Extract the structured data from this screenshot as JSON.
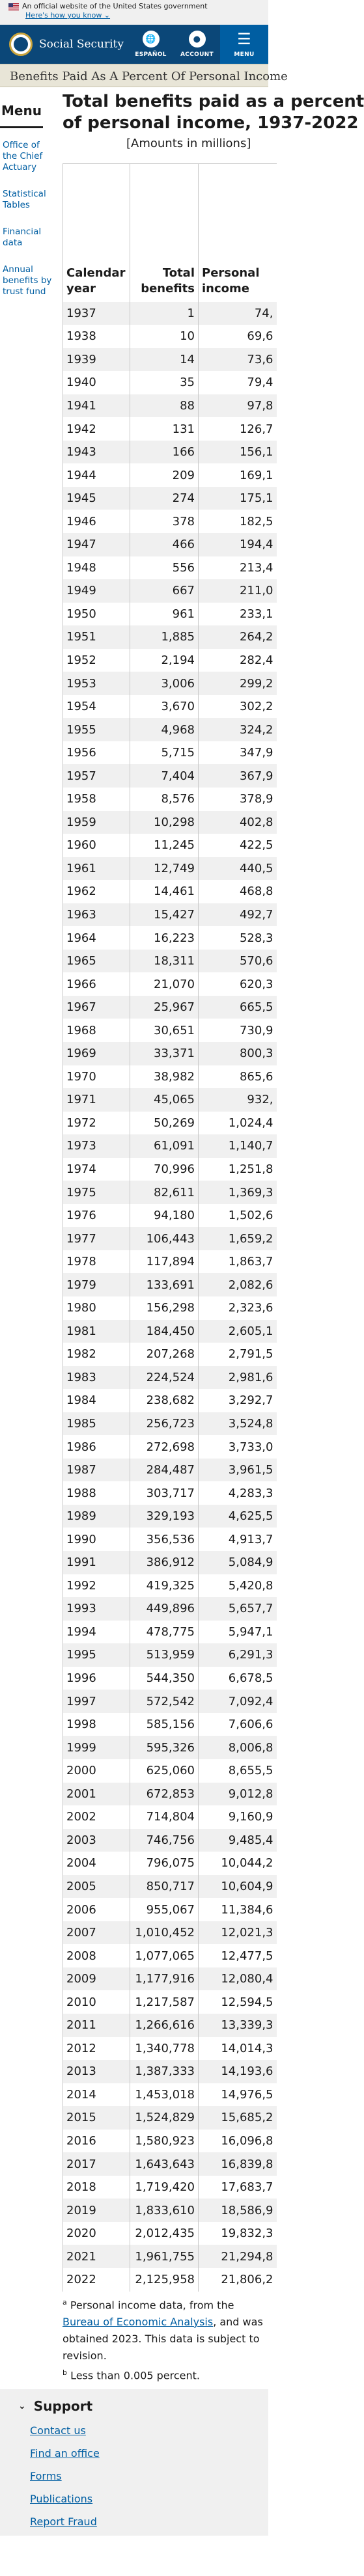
{
  "gov_banner": {
    "text": "An official website of the United States government",
    "link": "Here's how you know ⌄"
  },
  "header": {
    "brand": "Social Security",
    "espanol": "ESPAÑOL",
    "account": "ACCOUNT",
    "menu": "MENU"
  },
  "page_title": "Benefits Paid As A Percent Of Personal Income",
  "sidebar": {
    "heading": "Menu",
    "items": [
      "Office of the Chief Actuary",
      "Statistical Tables",
      "Financial data",
      "Annual benefits by trust fund"
    ]
  },
  "table": {
    "title": "Total benefits paid as a percent",
    "title_line2": "of personal income, 1937-2022",
    "subtitle": "[Amounts in millions]",
    "headers": {
      "year": "Calendar year",
      "benefits": "Total benefits",
      "income": "Personal income"
    },
    "rows": [
      [
        "1937",
        "1",
        "74,"
      ],
      [
        "1938",
        "10",
        "69,6"
      ],
      [
        "1939",
        "14",
        "73,6"
      ],
      [
        "1940",
        "35",
        "79,4"
      ],
      [
        "1941",
        "88",
        "97,8"
      ],
      [
        "1942",
        "131",
        "126,7"
      ],
      [
        "1943",
        "166",
        "156,1"
      ],
      [
        "1944",
        "209",
        "169,1"
      ],
      [
        "1945",
        "274",
        "175,1"
      ],
      [
        "1946",
        "378",
        "182,5"
      ],
      [
        "1947",
        "466",
        "194,4"
      ],
      [
        "1948",
        "556",
        "213,4"
      ],
      [
        "1949",
        "667",
        "211,0"
      ],
      [
        "1950",
        "961",
        "233,1"
      ],
      [
        "1951",
        "1,885",
        "264,2"
      ],
      [
        "1952",
        "2,194",
        "282,4"
      ],
      [
        "1953",
        "3,006",
        "299,2"
      ],
      [
        "1954",
        "3,670",
        "302,2"
      ],
      [
        "1955",
        "4,968",
        "324,2"
      ],
      [
        "1956",
        "5,715",
        "347,9"
      ],
      [
        "1957",
        "7,404",
        "367,9"
      ],
      [
        "1958",
        "8,576",
        "378,9"
      ],
      [
        "1959",
        "10,298",
        "402,8"
      ],
      [
        "1960",
        "11,245",
        "422,5"
      ],
      [
        "1961",
        "12,749",
        "440,5"
      ],
      [
        "1962",
        "14,461",
        "468,8"
      ],
      [
        "1963",
        "15,427",
        "492,7"
      ],
      [
        "1964",
        "16,223",
        "528,3"
      ],
      [
        "1965",
        "18,311",
        "570,6"
      ],
      [
        "1966",
        "21,070",
        "620,3"
      ],
      [
        "1967",
        "25,967",
        "665,5"
      ],
      [
        "1968",
        "30,651",
        "730,9"
      ],
      [
        "1969",
        "33,371",
        "800,3"
      ],
      [
        "1970",
        "38,982",
        "865,6"
      ],
      [
        "1971",
        "45,065",
        "932,"
      ],
      [
        "1972",
        "50,269",
        "1,024,4"
      ],
      [
        "1973",
        "61,091",
        "1,140,7"
      ],
      [
        "1974",
        "70,996",
        "1,251,8"
      ],
      [
        "1975",
        "82,611",
        "1,369,3"
      ],
      [
        "1976",
        "94,180",
        "1,502,6"
      ],
      [
        "1977",
        "106,443",
        "1,659,2"
      ],
      [
        "1978",
        "117,894",
        "1,863,7"
      ],
      [
        "1979",
        "133,691",
        "2,082,6"
      ],
      [
        "1980",
        "156,298",
        "2,323,6"
      ],
      [
        "1981",
        "184,450",
        "2,605,1"
      ],
      [
        "1982",
        "207,268",
        "2,791,5"
      ],
      [
        "1983",
        "224,524",
        "2,981,6"
      ],
      [
        "1984",
        "238,682",
        "3,292,7"
      ],
      [
        "1985",
        "256,723",
        "3,524,8"
      ],
      [
        "1986",
        "272,698",
        "3,733,0"
      ],
      [
        "1987",
        "284,487",
        "3,961,5"
      ],
      [
        "1988",
        "303,717",
        "4,283,3"
      ],
      [
        "1989",
        "329,193",
        "4,625,5"
      ],
      [
        "1990",
        "356,536",
        "4,913,7"
      ],
      [
        "1991",
        "386,912",
        "5,084,9"
      ],
      [
        "1992",
        "419,325",
        "5,420,8"
      ],
      [
        "1993",
        "449,896",
        "5,657,7"
      ],
      [
        "1994",
        "478,775",
        "5,947,1"
      ],
      [
        "1995",
        "513,959",
        "6,291,3"
      ],
      [
        "1996",
        "544,350",
        "6,678,5"
      ],
      [
        "1997",
        "572,542",
        "7,092,4"
      ],
      [
        "1998",
        "585,156",
        "7,606,6"
      ],
      [
        "1999",
        "595,326",
        "8,006,8"
      ],
      [
        "2000",
        "625,060",
        "8,655,5"
      ],
      [
        "2001",
        "672,853",
        "9,012,8"
      ],
      [
        "2002",
        "714,804",
        "9,160,9"
      ],
      [
        "2003",
        "746,756",
        "9,485,4"
      ],
      [
        "2004",
        "796,075",
        "10,044,2"
      ],
      [
        "2005",
        "850,717",
        "10,604,9"
      ],
      [
        "2006",
        "955,067",
        "11,384,6"
      ],
      [
        "2007",
        "1,010,452",
        "12,021,3"
      ],
      [
        "2008",
        "1,077,065",
        "12,477,5"
      ],
      [
        "2009",
        "1,177,916",
        "12,080,4"
      ],
      [
        "2010",
        "1,217,587",
        "12,594,5"
      ],
      [
        "2011",
        "1,266,616",
        "13,339,3"
      ],
      [
        "2012",
        "1,340,778",
        "14,014,3"
      ],
      [
        "2013",
        "1,387,333",
        "14,193,6"
      ],
      [
        "2014",
        "1,453,018",
        "14,976,5"
      ],
      [
        "2015",
        "1,524,829",
        "15,685,2"
      ],
      [
        "2016",
        "1,580,923",
        "16,096,8"
      ],
      [
        "2017",
        "1,643,643",
        "16,839,8"
      ],
      [
        "2018",
        "1,719,420",
        "17,683,7"
      ],
      [
        "2019",
        "1,833,610",
        "18,586,9"
      ],
      [
        "2020",
        "2,012,435",
        "19,832,3"
      ],
      [
        "2021",
        "1,961,755",
        "21,294,8"
      ],
      [
        "2022",
        "2,125,958",
        "21,806,2"
      ]
    ],
    "note_a_sup": "a",
    "note_a_text": "Personal income data, from the",
    "note_a_link": "Bureau of Economic Analysis",
    "note_a_rest": ", and was obtained 2023. This data is subject to revision.",
    "note_b_sup": "b",
    "note_b_text": "Less than 0.005 percent."
  },
  "footer": {
    "heading": "Support",
    "links": [
      "Contact us",
      "Find an office",
      "Forms",
      "Publications",
      "Report Fraud"
    ]
  }
}
